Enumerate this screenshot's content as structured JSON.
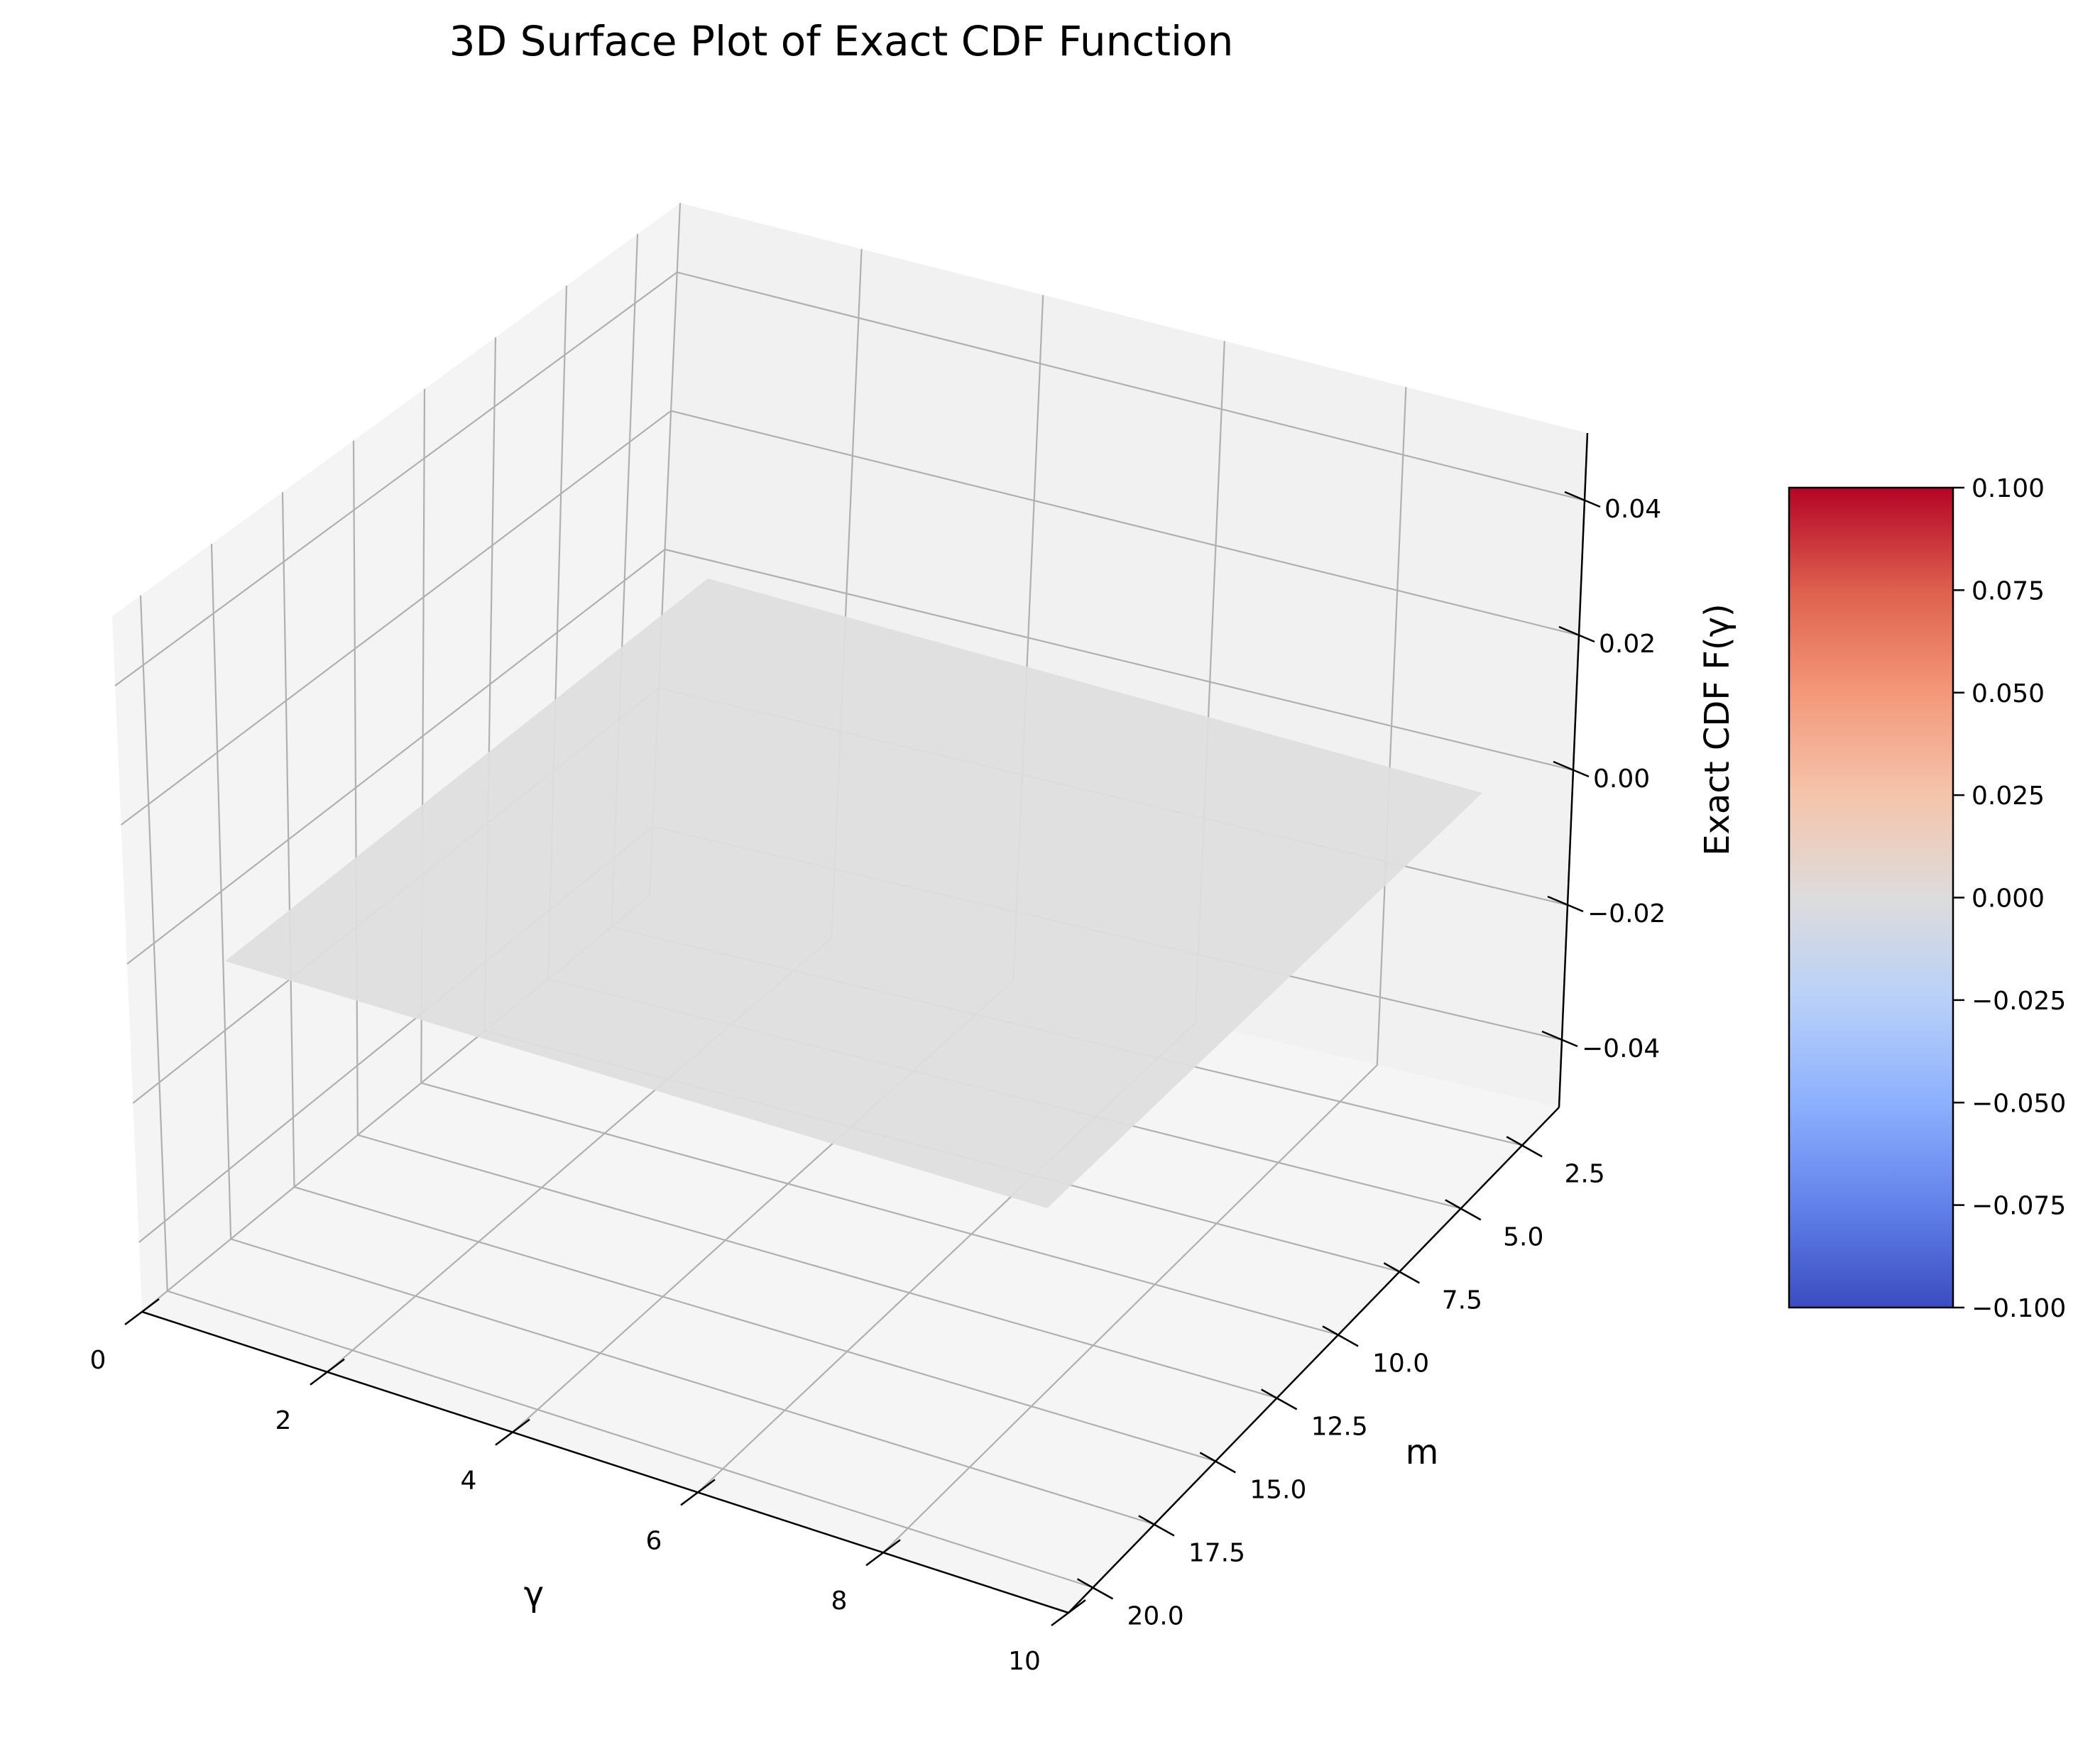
{
  "chart_data": {
    "type": "surface3d",
    "title": "3D Surface Plot of Exact CDF Function",
    "xlabel": "γ",
    "ylabel": "m",
    "zlabel": "Exact CDF F(γ)",
    "x_ticks": [
      "0",
      "2",
      "4",
      "6",
      "8",
      "10"
    ],
    "y_ticks": [
      "2.5",
      "5.0",
      "7.5",
      "10.0",
      "12.5",
      "15.0",
      "17.5",
      "20.0"
    ],
    "z_ticks": [
      "−0.04",
      "−0.02",
      "0.00",
      "0.02",
      "0.04"
    ],
    "xlim": [
      0,
      10
    ],
    "ylim": [
      1,
      21
    ],
    "zlim": [
      -0.05,
      0.05
    ],
    "surface": {
      "x_range": [
        0,
        10
      ],
      "y_range": [
        1,
        20
      ],
      "z_value": 0.0
    },
    "grid": true,
    "colorbar": {
      "colormap": "coolwarm",
      "ticks": [
        "−0.100",
        "−0.075",
        "−0.050",
        "−0.025",
        "0.000",
        "0.025",
        "0.050",
        "0.075",
        "0.100"
      ],
      "range": [
        -0.1,
        0.1
      ]
    }
  },
  "colors": {
    "pane_back": "#f0f0f0",
    "pane_side": "#ebebeb",
    "pane_floor": "#f3f3f3",
    "grid": "#b0b0b0",
    "surface": "#dedede",
    "cmap_low": "#3b4cc0",
    "cmap_mid": "#dddddd",
    "cmap_high": "#b40426"
  }
}
